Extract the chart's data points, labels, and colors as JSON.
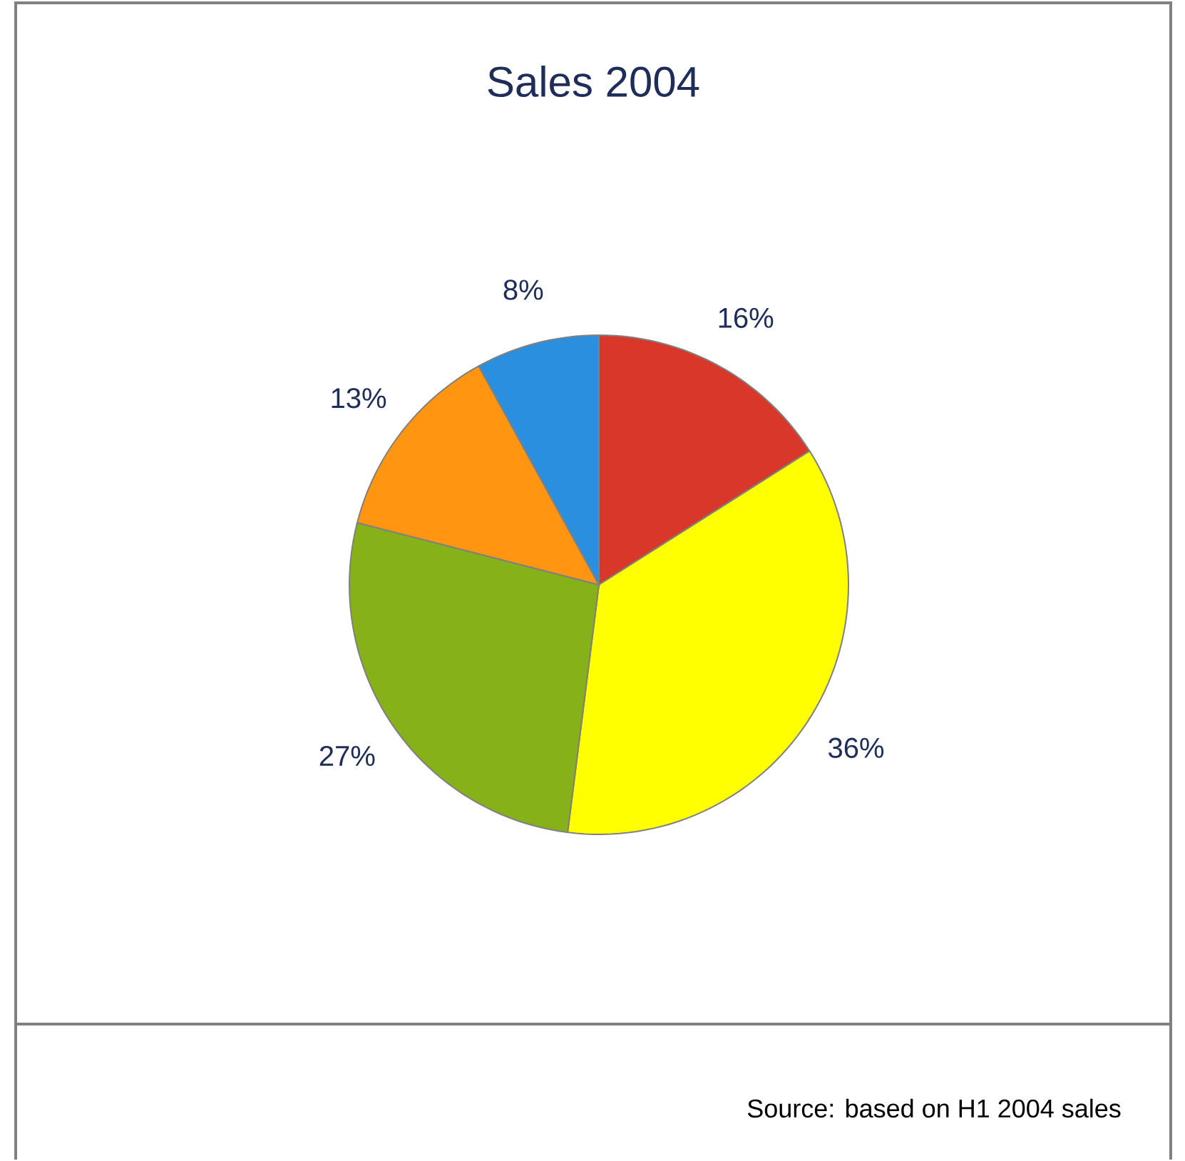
{
  "chart_data": {
    "type": "pie",
    "title": "Sales 2004",
    "categories": [
      null,
      null,
      null,
      null,
      null
    ],
    "values": [
      16,
      36,
      27,
      13,
      8
    ],
    "value_labels": [
      "16%",
      "36%",
      "27%",
      "13%",
      "8%"
    ],
    "colors": [
      "#d9372a",
      "#ffff00",
      "#86b118",
      "#ff9511",
      "#2b8fe0"
    ],
    "annotations": [
      "Source: based on H1 2004 sales"
    ]
  }
}
